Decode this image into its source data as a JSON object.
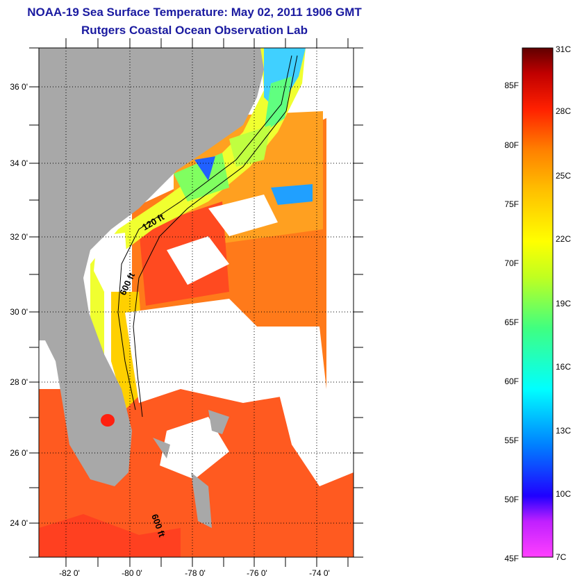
{
  "title": "NOAA-19 Sea Surface Temperature:  May 02, 2011 1906 GMT",
  "subtitle": "Rutgers Coastal Ocean Observation Lab",
  "map": {
    "lat_ticks": [
      "24 0'",
      "26 0'",
      "28 0'",
      "30 0'",
      "32 0'",
      "34 0'",
      "36 0'"
    ],
    "lon_ticks": [
      "-82 0'",
      "-80 0'",
      "-78 0'",
      "-76 0'",
      "-74 0'"
    ],
    "isobath_labels": [
      "120 ft",
      "600 ft",
      "600 ft"
    ],
    "colors": {
      "land": "#a8a8a8",
      "cloud": "#ffffff",
      "grid": "#000000"
    }
  },
  "colorbar": {
    "celsius_labels": [
      "31C",
      "28C",
      "25C",
      "22C",
      "19C",
      "16C",
      "13C",
      "10C",
      "7C"
    ],
    "fahrenheit_labels": [
      "85F",
      "80F",
      "75F",
      "70F",
      "65F",
      "60F",
      "55F",
      "50F",
      "45F"
    ],
    "range_c": [
      7,
      31
    ],
    "stops": [
      "#ff3cff",
      "#8020ff",
      "#0000ff",
      "#0060ff",
      "#00c0ff",
      "#00ffe0",
      "#40ff80",
      "#a0ff40",
      "#ffff00",
      "#ffc000",
      "#ff8000",
      "#ff3000",
      "#e00000",
      "#700000"
    ]
  }
}
